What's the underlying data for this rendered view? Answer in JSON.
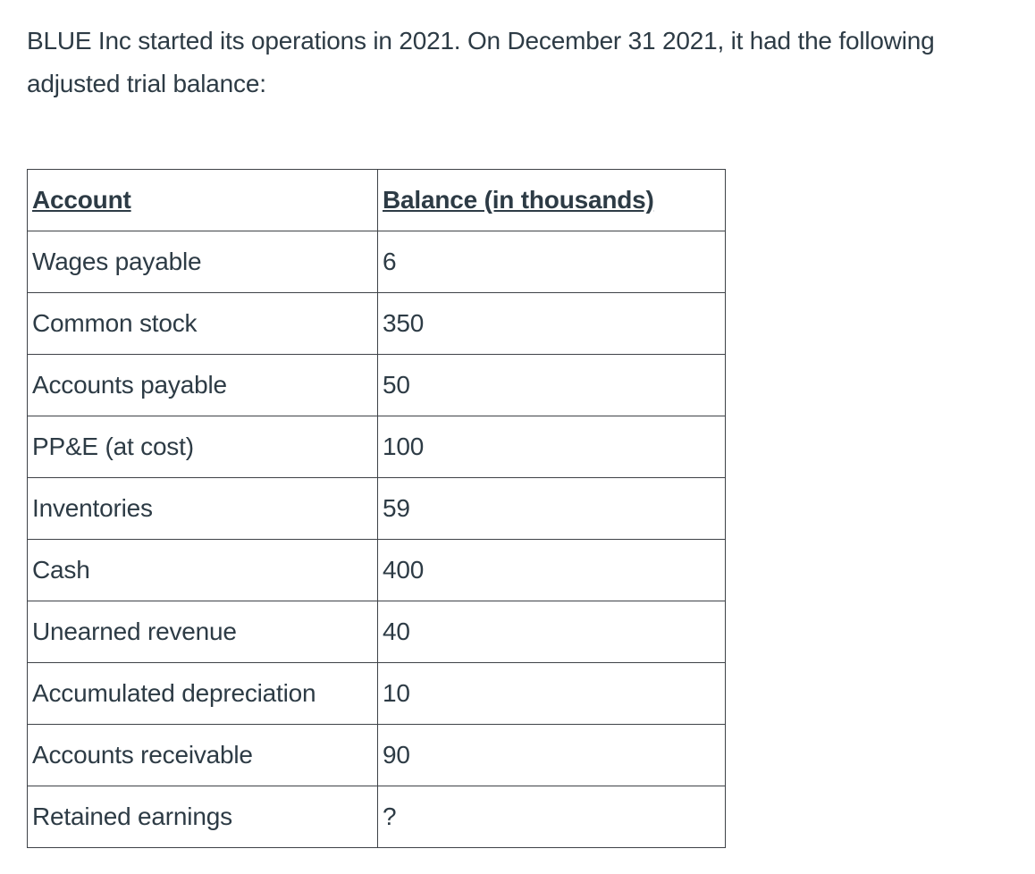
{
  "colors": {
    "text": "#2d3b45",
    "border": "#3e4247",
    "background": "#ffffff"
  },
  "intro": {
    "text": "BLUE Inc started its operations in 2021. On December 31 2021, it had the following adjusted trial balance:"
  },
  "table": {
    "headers": [
      "Account",
      "Balance (in thousands)"
    ],
    "rows": [
      [
        "Wages payable",
        "6"
      ],
      [
        "Common stock",
        "350"
      ],
      [
        "Accounts payable",
        "50"
      ],
      [
        "PP&E (at cost)",
        "100"
      ],
      [
        "Inventories",
        "59"
      ],
      [
        "Cash",
        "400"
      ],
      [
        "Unearned revenue",
        "40"
      ],
      [
        "Accumulated depreciation",
        "10"
      ],
      [
        "Accounts receivable",
        "90"
      ],
      [
        "Retained earnings",
        "?"
      ]
    ]
  }
}
